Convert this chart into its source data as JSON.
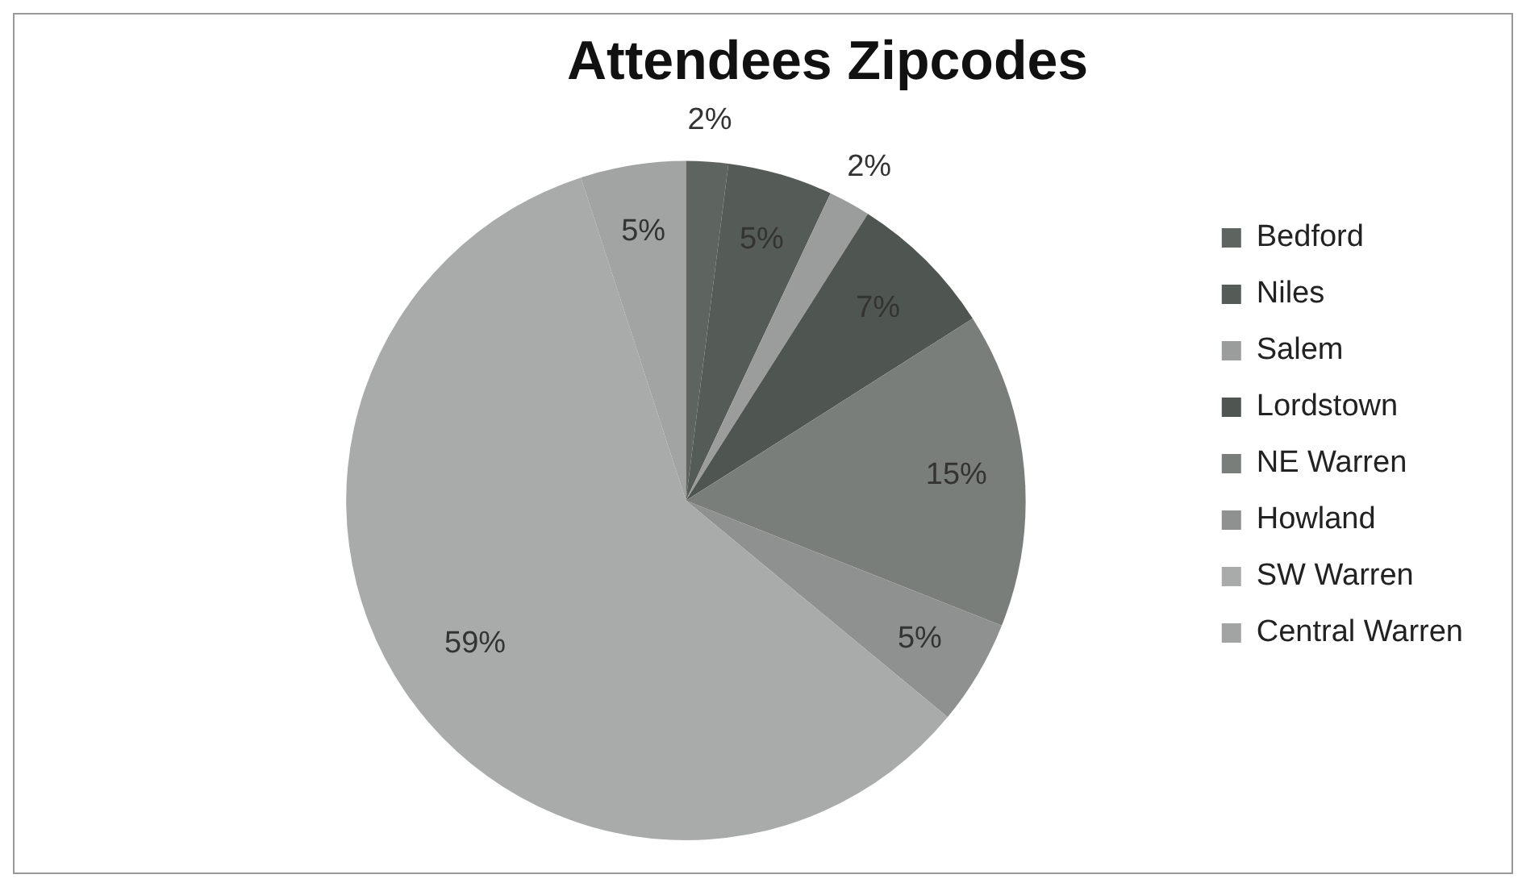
{
  "chart_data": {
    "type": "pie",
    "title": "Attendees Zipcodes",
    "categories": [
      "Bedford",
      "Niles",
      "Salem",
      "Lordstown",
      "NE Warren",
      "Howland",
      "SW Warren",
      "Central Warren"
    ],
    "values": [
      2,
      5,
      2,
      7,
      15,
      5,
      59,
      5
    ],
    "colors": [
      "#5e6560",
      "#555c57",
      "#9a9d9b",
      "#4f5651",
      "#7a7e7b",
      "#8e918f",
      "#a9abaa",
      "#a2a4a3"
    ],
    "value_labels": [
      "2%",
      "5%",
      "2%",
      "7%",
      "15%",
      "5%",
      "59%",
      "5%"
    ],
    "legend": "right"
  }
}
